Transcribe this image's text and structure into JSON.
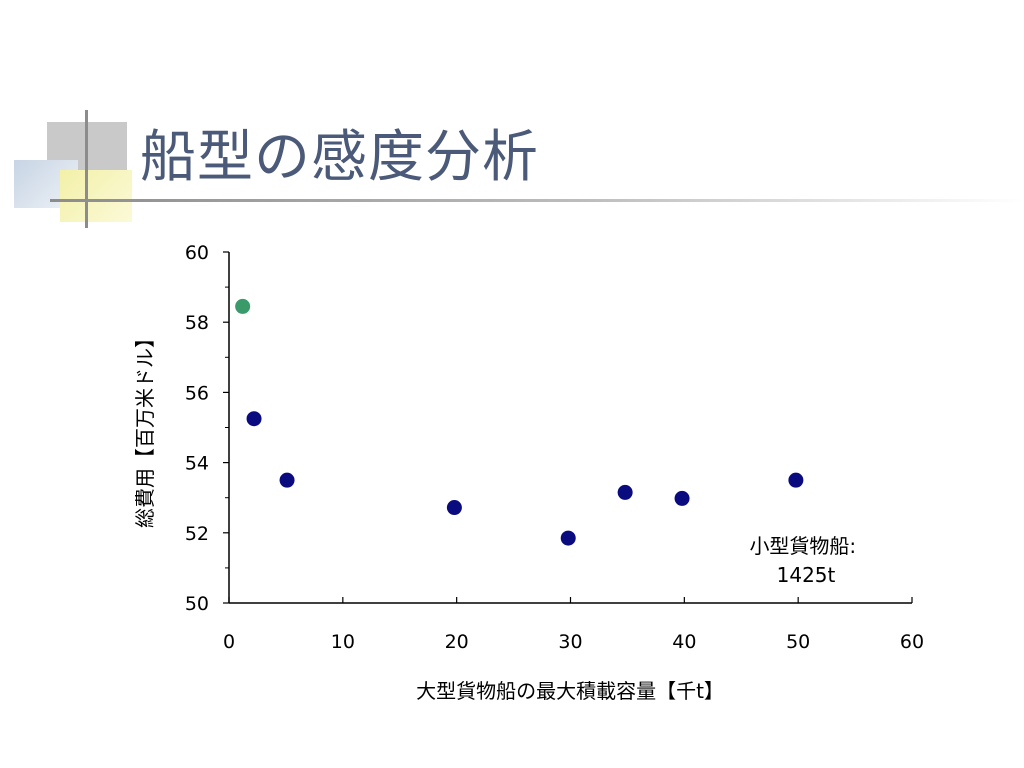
{
  "slide": {
    "title": "船型の感度分析"
  },
  "chart_data": {
    "type": "scatter",
    "title": "",
    "xlabel": "大型貨物船の最大積載容量【千t】",
    "ylabel": "総費用【百万米ドル】",
    "xlim": [
      0,
      60
    ],
    "ylim": [
      50,
      60
    ],
    "xticks": [
      0,
      10,
      20,
      30,
      40,
      50,
      60
    ],
    "yticks": [
      50,
      52,
      54,
      56,
      58,
      60
    ],
    "grid": false,
    "series": [
      {
        "color": "#3a9a6a",
        "points": [
          {
            "x": 1.2,
            "y": 58.45
          }
        ]
      },
      {
        "color": "#0b0b80",
        "points": [
          {
            "x": 2.2,
            "y": 55.25
          },
          {
            "x": 5.1,
            "y": 53.5
          },
          {
            "x": 19.8,
            "y": 52.72
          },
          {
            "x": 29.8,
            "y": 51.85
          },
          {
            "x": 34.8,
            "y": 53.15
          },
          {
            "x": 39.8,
            "y": 52.98
          },
          {
            "x": 49.8,
            "y": 53.5
          }
        ]
      }
    ],
    "annotation": {
      "lines": [
        "小型貨物船:",
        "1425t"
      ]
    }
  }
}
